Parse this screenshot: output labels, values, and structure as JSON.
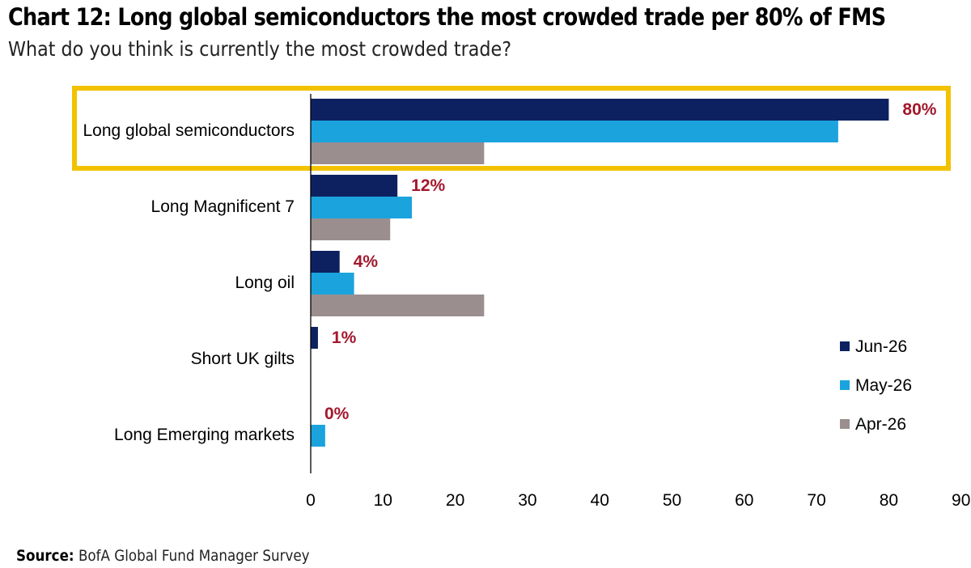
{
  "title": "Chart 12: Long global semiconductors the most crowded trade per 80% of FMS",
  "subtitle": "What do you think is currently the most crowded trade?",
  "source": {
    "label": "Source:",
    "text": "BofA Global Fund Manager Survey"
  },
  "colors": {
    "jun": "#0d2160",
    "may": "#1ba3de",
    "apr": "#9a8e8e",
    "highlight": "#f2c200",
    "value_label": "#a3182d"
  },
  "chart_data": {
    "type": "bar",
    "orientation": "horizontal",
    "categories": [
      "Long global semiconductors",
      "Long Magnificent 7",
      "Long oil",
      "Short UK gilts",
      "Long Emerging markets"
    ],
    "series": [
      {
        "name": "Jun-26",
        "values": [
          80,
          12,
          4,
          1,
          0
        ]
      },
      {
        "name": "May-26",
        "values": [
          73,
          14,
          6,
          0,
          2
        ]
      },
      {
        "name": "Apr-26",
        "values": [
          24,
          11,
          24,
          0,
          0
        ]
      }
    ],
    "value_labels": [
      "80%",
      "12%",
      "4%",
      "1%",
      "0%"
    ],
    "xlim": [
      0,
      90
    ],
    "xticks": [
      0,
      10,
      20,
      30,
      40,
      50,
      60,
      70,
      80,
      90
    ],
    "highlighted_category": "Long global semiconductors",
    "legend_position": "right",
    "grid": false
  }
}
